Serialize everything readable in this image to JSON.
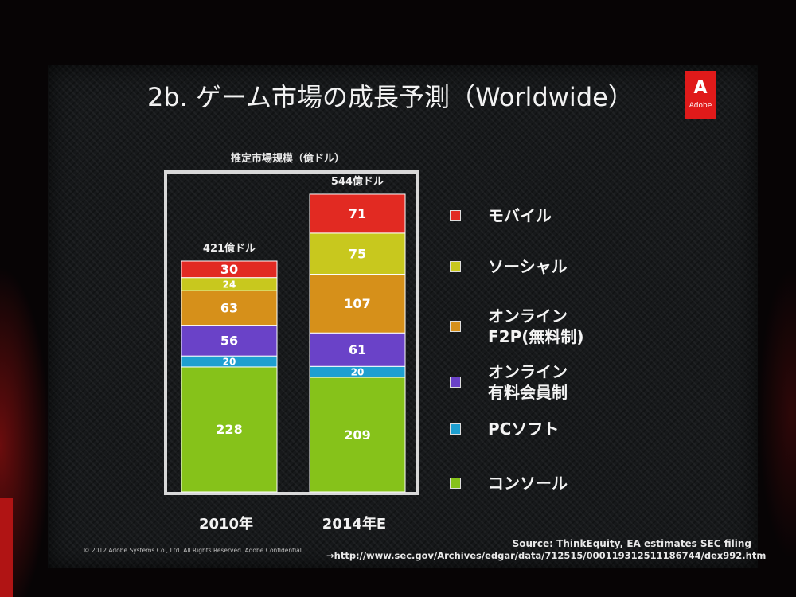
{
  "slide": {
    "title": "2b. ゲーム市場の成長予測（Worldwide）",
    "logo_text": "Adobe",
    "logo_glyph": "A",
    "subtitle": "推定市場規模（億ドル）",
    "source": "Source: ThinkEquity, EA estimates SEC filing",
    "source_url": "→http://www.sec.gov/Archives/edgar/data/712515/000119312511186744/dex992.htm",
    "copyright": "© 2012 Adobe Systems Co., Ltd. All Rights Reserved. Adobe Confidential",
    "colors": {
      "background": "#17191b",
      "logo": "#e01a1a",
      "frame": "#d8d8d8"
    }
  },
  "chart_data": {
    "type": "bar",
    "stacked": true,
    "categories": [
      "2010年",
      "2014年E"
    ],
    "totals_labels": [
      "421億ドル",
      "544億ドル"
    ],
    "totals": [
      421,
      544
    ],
    "series": [
      {
        "name": "コンソール",
        "values": [
          228,
          209
        ],
        "color": "#86c21a"
      },
      {
        "name": "PCソフト",
        "values": [
          20,
          20
        ],
        "color": "#1e9fd0"
      },
      {
        "name": "オンライン\n有料会員制",
        "values": [
          56,
          61
        ],
        "color": "#6a42c8"
      },
      {
        "name": "オンライン\nF2P(無料制)",
        "values": [
          63,
          107
        ],
        "color": "#d6901a"
      },
      {
        "name": "ソーシャル",
        "values": [
          24,
          75
        ],
        "color": "#c8c81e"
      },
      {
        "name": "モバイル",
        "values": [
          30,
          71
        ],
        "color": "#e22a22"
      }
    ],
    "legend_order": [
      "モバイル",
      "ソーシャル",
      "オンライン\nF2P(無料制)",
      "オンライン\n有料会員制",
      "PCソフト",
      "コンソール"
    ],
    "legend_position": "right",
    "grid": false,
    "ylim": [
      0,
      600
    ]
  }
}
